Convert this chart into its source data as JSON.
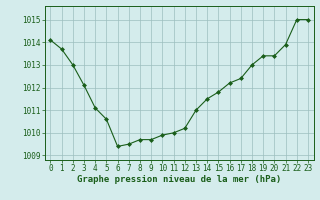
{
  "x": [
    0,
    1,
    2,
    3,
    4,
    5,
    6,
    7,
    8,
    9,
    10,
    11,
    12,
    13,
    14,
    15,
    16,
    17,
    18,
    19,
    20,
    21,
    22,
    23
  ],
  "y": [
    1014.1,
    1013.7,
    1013.0,
    1012.1,
    1011.1,
    1010.6,
    1009.4,
    1009.5,
    1009.7,
    1009.7,
    1009.9,
    1010.0,
    1010.2,
    1011.0,
    1011.5,
    1011.8,
    1012.2,
    1012.4,
    1013.0,
    1013.4,
    1013.4,
    1013.9,
    1015.0,
    1015.0
  ],
  "line_color": "#1a5e1a",
  "marker_color": "#1a5e1a",
  "bg_color": "#d4ecec",
  "grid_color": "#9dbfbf",
  "xlabel": "Graphe pression niveau de la mer (hPa)",
  "ylim": [
    1008.8,
    1015.6
  ],
  "yticks": [
    1009,
    1010,
    1011,
    1012,
    1013,
    1014,
    1015
  ],
  "xticks": [
    0,
    1,
    2,
    3,
    4,
    5,
    6,
    7,
    8,
    9,
    10,
    11,
    12,
    13,
    14,
    15,
    16,
    17,
    18,
    19,
    20,
    21,
    22,
    23
  ],
  "xlabel_fontsize": 6.5,
  "tick_fontsize": 5.5
}
